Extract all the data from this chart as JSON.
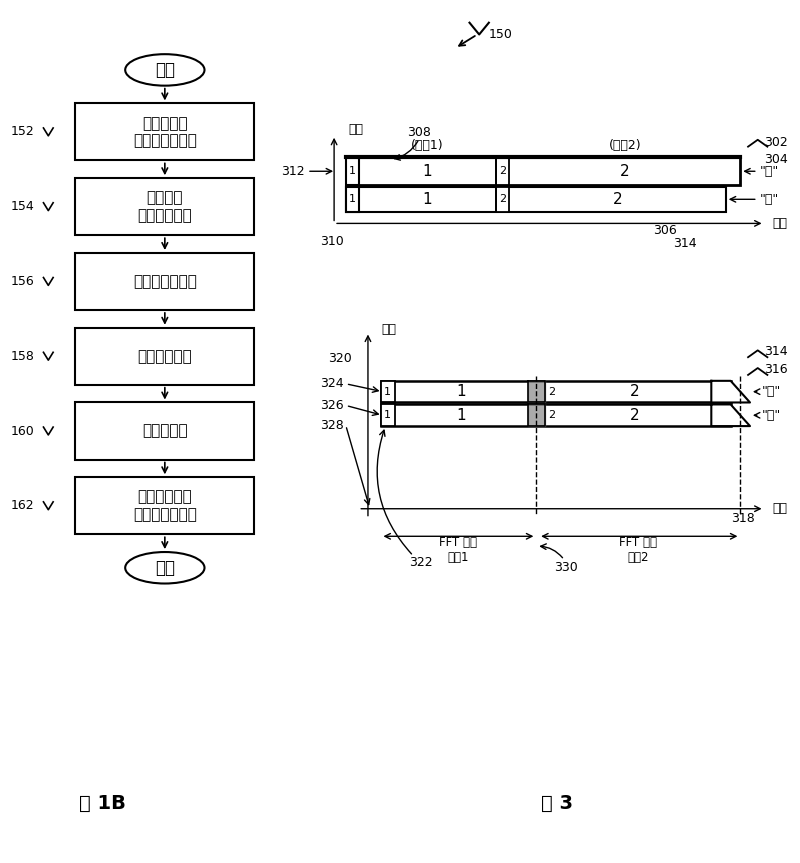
{
  "fig_width": 8.0,
  "fig_height": 8.63,
  "background_color": "#ffffff",
  "flowchart": {
    "boxes": [
      "将数据调制\n到正交副载波上",
      "将副载波\n划分成多个带",
      "将带变换到时域",
      "施加时间延迟",
      "组合变换带",
      "利用组合后的\n信号调制光载波"
    ],
    "labels": [
      "152",
      "154",
      "156",
      "158",
      "160",
      "162"
    ],
    "start_label": "开始",
    "end_label": "结束"
  },
  "fig3_top": {
    "freq_label": "频率",
    "time_label": "时间",
    "symbol1_label": "(符号1)",
    "symbol2_label": "(符号2)",
    "blue_label": "\"蓝\"",
    "red_label": "\"红\""
  },
  "fig3_bottom": {
    "freq_label": "频率",
    "time_label": "时间",
    "blue_label": "\"蓝\"",
    "red_label": "\"红\"",
    "fft1_label": "FFT 窗口\n符号1",
    "fft2_label": "FFT 窗口\n符号2"
  },
  "fig1b_label": "图 1B",
  "fig3_label": "图 3",
  "ref150": "150",
  "ref152": "152",
  "ref154": "154",
  "ref156": "156",
  "ref158": "158",
  "ref160": "160",
  "ref162": "162",
  "ref302": "302",
  "ref304": "304",
  "ref306": "306",
  "ref308": "308",
  "ref310": "310",
  "ref312": "312",
  "ref314": "314",
  "ref316": "316",
  "ref318": "318",
  "ref320": "320",
  "ref322": "322",
  "ref324": "324",
  "ref326": "326",
  "ref328": "328",
  "ref330": "330"
}
